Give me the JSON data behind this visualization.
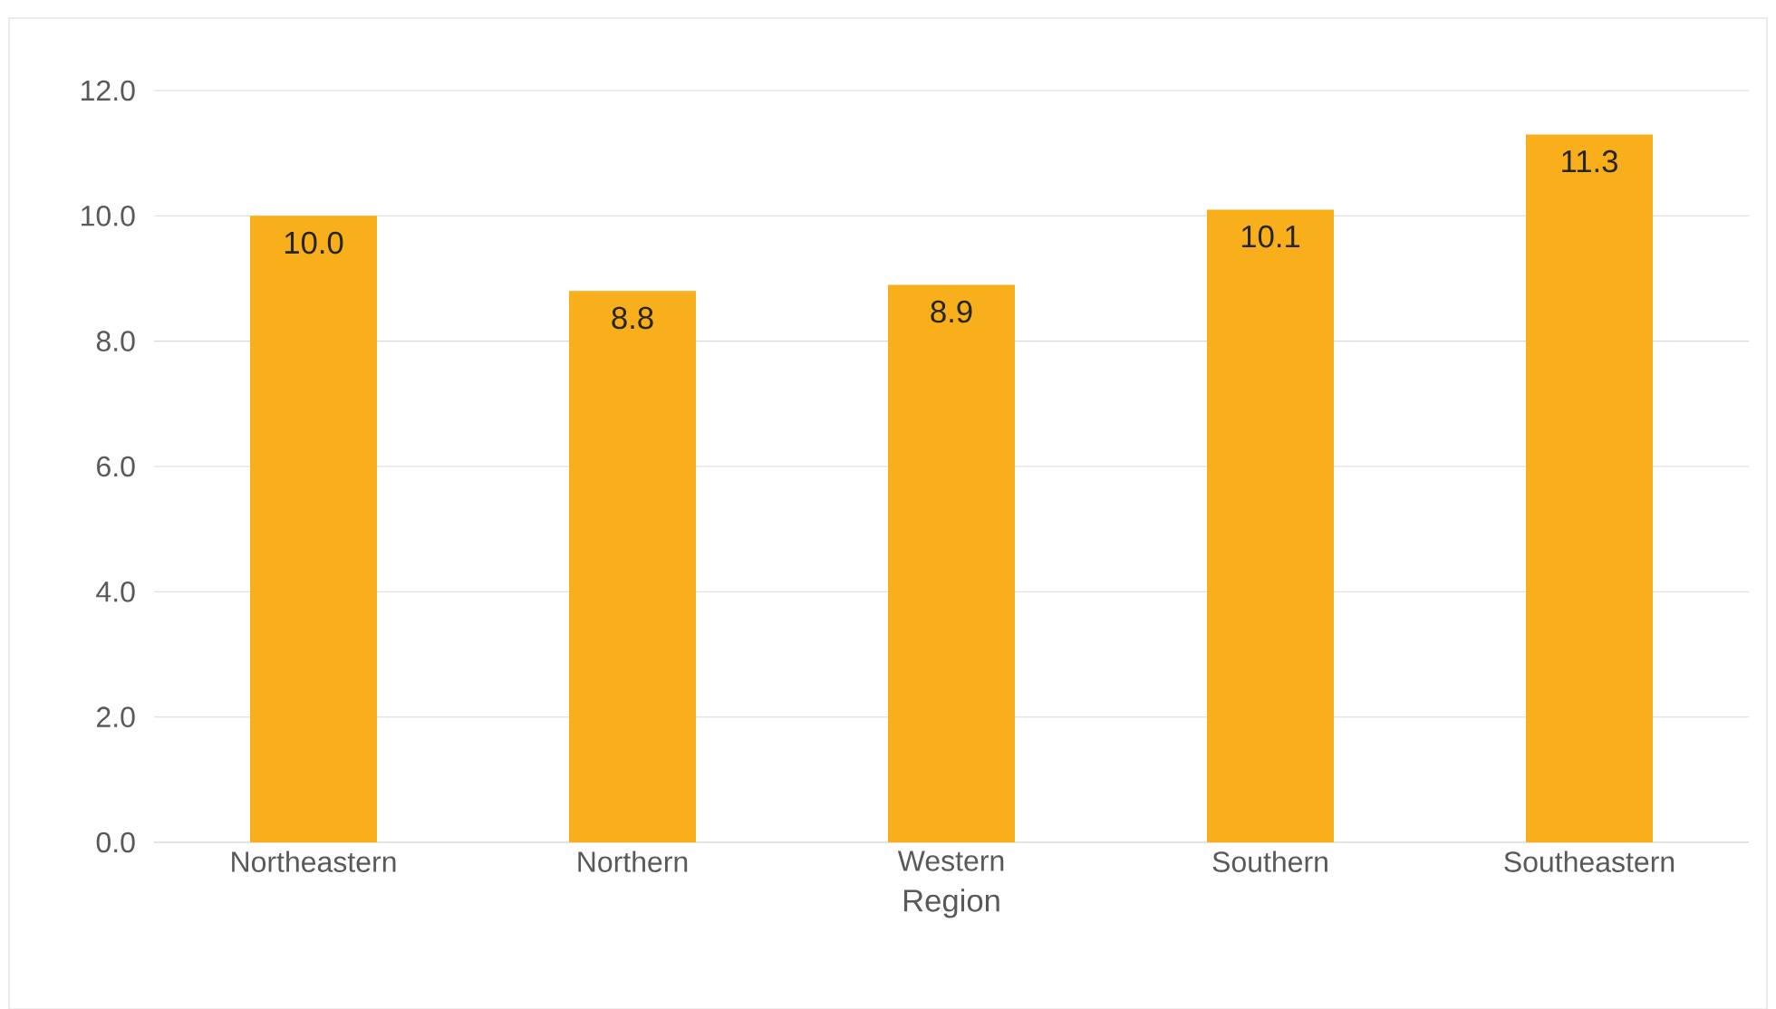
{
  "chart_data": {
    "type": "bar",
    "xlabel": "Region",
    "categories": [
      "Northeastern",
      "Northern",
      "Western",
      "Southern",
      "Southeastern"
    ],
    "values": [
      10.0,
      8.8,
      8.9,
      10.1,
      11.3
    ],
    "value_labels": [
      "10.0",
      "8.8",
      "8.9",
      "10.1",
      "11.3"
    ],
    "color": "#f9ae1b",
    "ylim": [
      0,
      12
    ],
    "yticks": [
      {
        "value": 0,
        "label": "0.0"
      },
      {
        "value": 2,
        "label": "2.0"
      },
      {
        "value": 4,
        "label": "4.0"
      },
      {
        "value": 6,
        "label": "6.0"
      },
      {
        "value": 8,
        "label": "8.0"
      },
      {
        "value": 10,
        "label": "10.0"
      },
      {
        "value": 12,
        "label": "12.0"
      }
    ],
    "grid": "y"
  }
}
